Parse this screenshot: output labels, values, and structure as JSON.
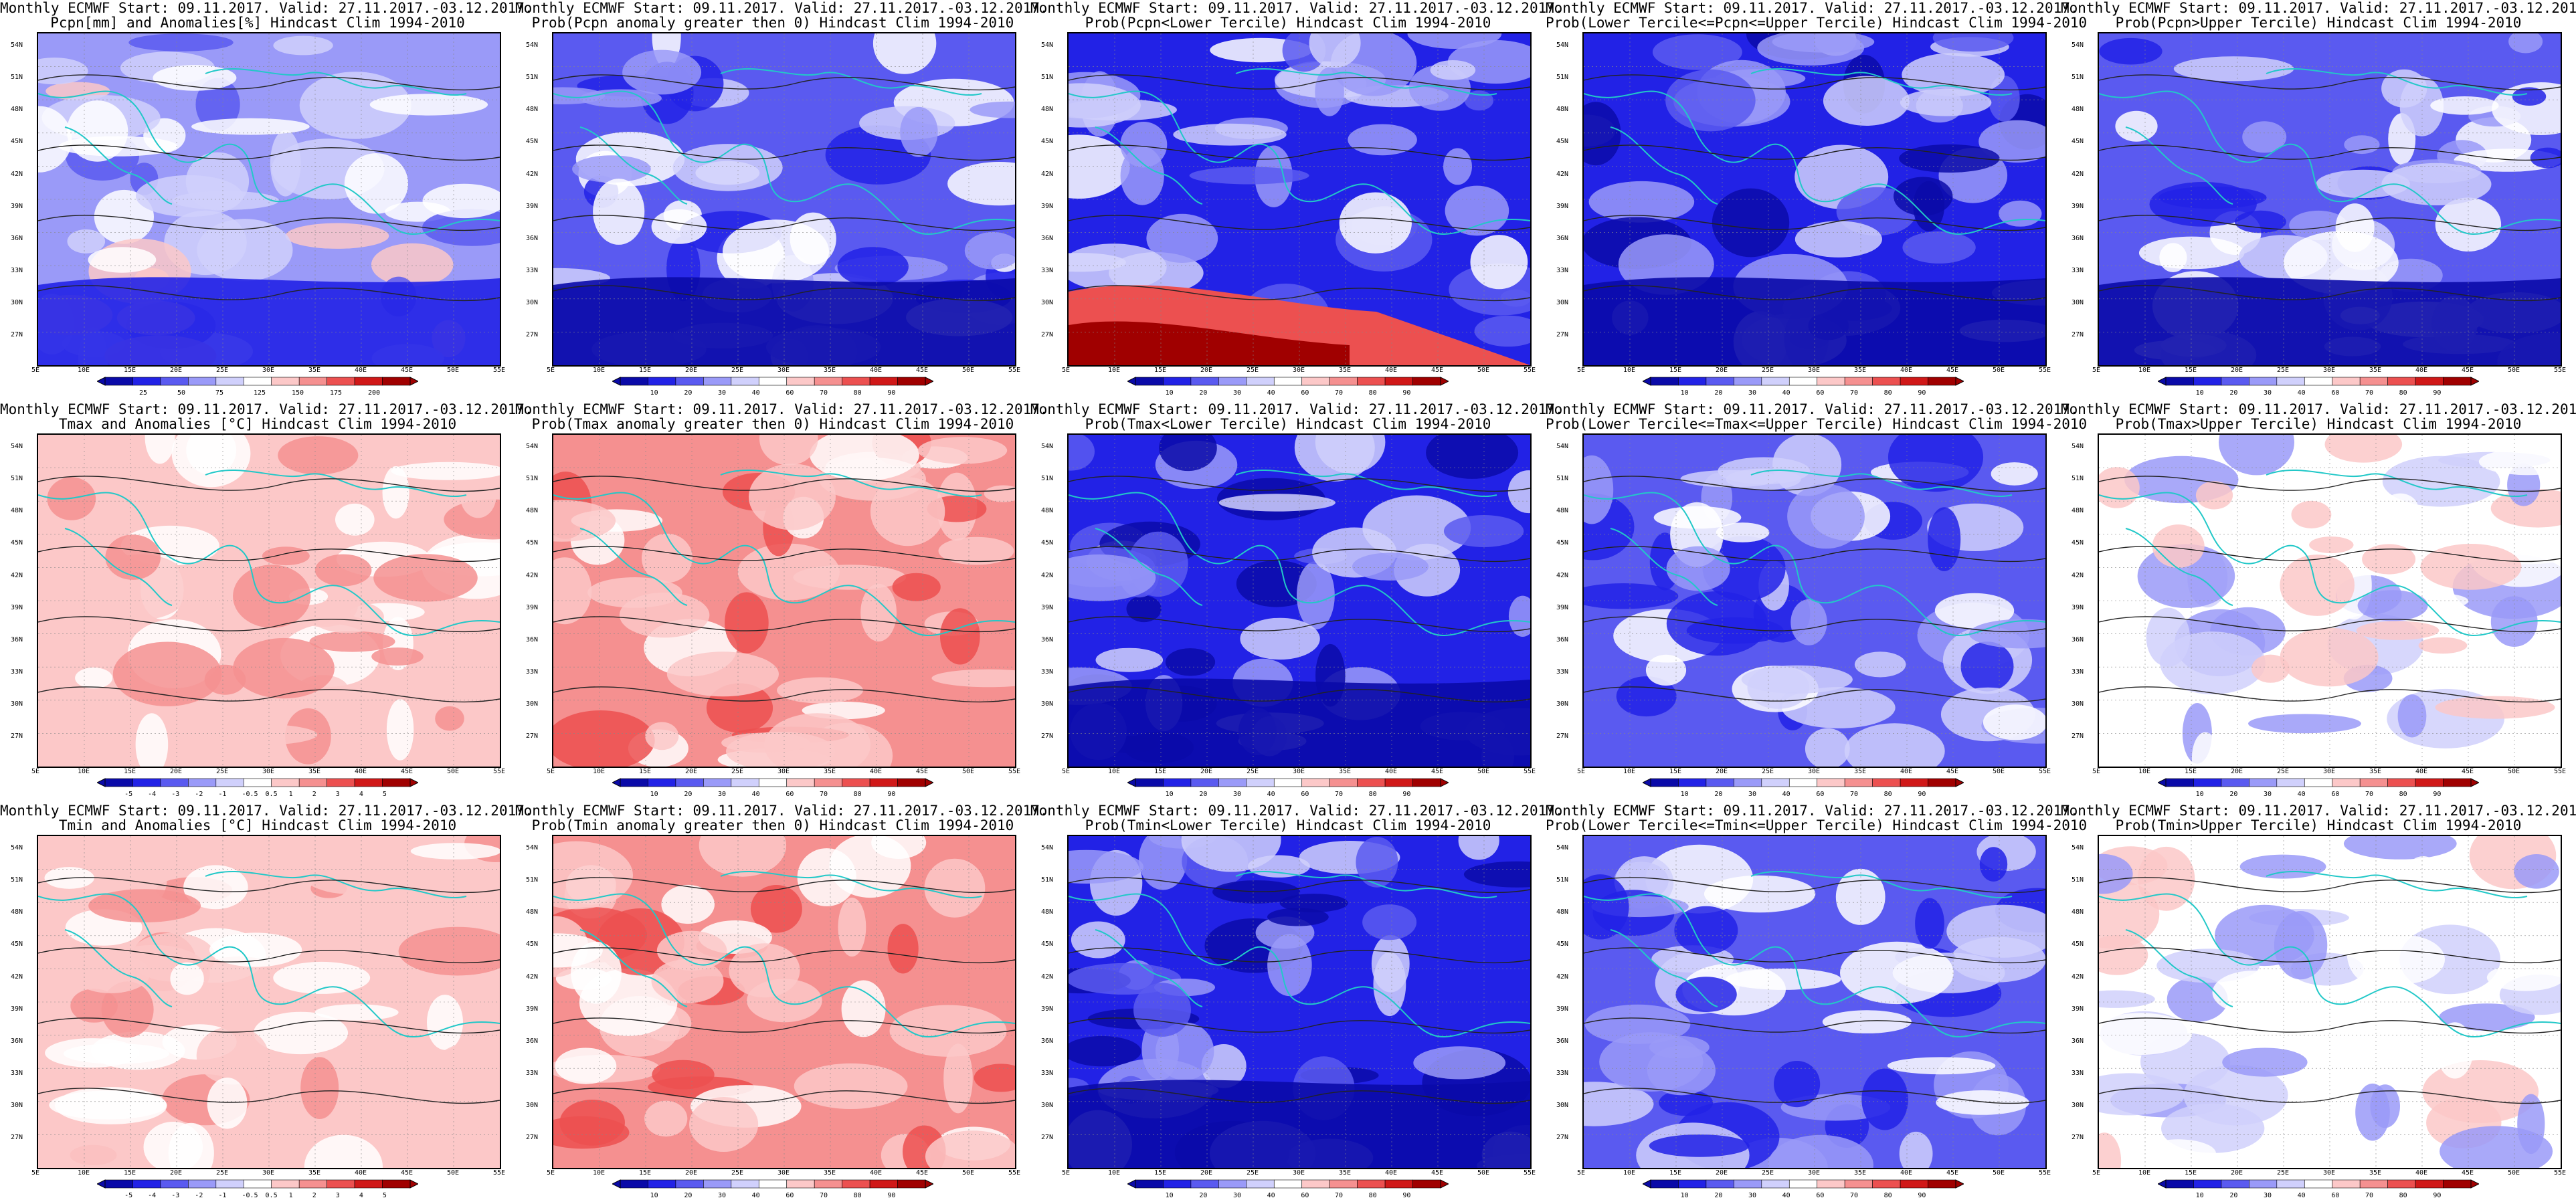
{
  "title_prefix": "Monthly ECMWF Start: 09.11.2017. Valid: 27.11.2017.-03.12.2017.",
  "lon_labels": [
    "5E",
    "10E",
    "15E",
    "20E",
    "25E",
    "30E",
    "35E",
    "40E",
    "45E",
    "50E",
    "55E"
  ],
  "lat_labels": [
    "54N",
    "51N",
    "48N",
    "45N",
    "42N",
    "39N",
    "36N",
    "33N",
    "30N",
    "27N"
  ],
  "colorbars": {
    "prob": {
      "labels": [
        "10",
        "20",
        "30",
        "40",
        "60",
        "70",
        "80",
        "90"
      ],
      "colors": [
        "#0a0aa8",
        "#2222e6",
        "#5a5af0",
        "#9a9af8",
        "#d0d0fc",
        "#ffffff",
        "#fcc8c8",
        "#f59090",
        "#ec5050",
        "#d01818",
        "#a00000"
      ]
    },
    "pcpn_anom": {
      "labels": [
        "25",
        "50",
        "75",
        "125",
        "150",
        "175",
        "200"
      ],
      "colors": [
        "#0a0aa8",
        "#2222e6",
        "#5a5af0",
        "#9a9af8",
        "#d0d0fc",
        "#ffffff",
        "#fcc8c8",
        "#f59090",
        "#ec5050",
        "#d01818",
        "#a00000"
      ]
    },
    "temp_anom": {
      "labels": [
        "-5",
        "-4",
        "-3",
        "-2",
        "-1",
        "-0.5",
        "0.5",
        "1",
        "2",
        "3",
        "4",
        "5"
      ],
      "colors": [
        "#0a0aa8",
        "#2222e6",
        "#5a5af0",
        "#9a9af8",
        "#d0d0fc",
        "#ffffff",
        "#fcc8c8",
        "#f59090",
        "#ec5050",
        "#d01818",
        "#a00000"
      ]
    }
  },
  "panels": [
    {
      "id": "pcpn-anomalies",
      "subtitle": "Pcpn[mm] and Anomalies[%] Hindcast Clim 1994-2010",
      "bar": "pcpn_anom"
    },
    {
      "id": "pcpn-prob-positive",
      "subtitle": "Prob(Pcpn anomaly greater then 0) Hindcast Clim 1994-2010",
      "bar": "prob"
    },
    {
      "id": "pcpn-prob-lower",
      "subtitle": "Prob(Pcpn<Lower Tercile) Hindcast Clim 1994-2010",
      "bar": "prob"
    },
    {
      "id": "pcpn-prob-middle",
      "subtitle": "Prob(Lower Tercile<=Pcpn<=Upper Tercile) Hindcast Clim 1994-2010",
      "bar": "prob"
    },
    {
      "id": "pcpn-prob-upper",
      "subtitle": "Prob(Pcpn>Upper Tercile) Hindcast Clim 1994-2010",
      "bar": "prob"
    },
    {
      "id": "tmax-anomalies",
      "subtitle": "Tmax and Anomalies [°C] Hindcast Clim 1994-2010",
      "bar": "temp_anom"
    },
    {
      "id": "tmax-prob-positive",
      "subtitle": "Prob(Tmax anomaly greater then 0) Hindcast Clim 1994-2010",
      "bar": "prob"
    },
    {
      "id": "tmax-prob-lower",
      "subtitle": "Prob(Tmax<Lower Tercile) Hindcast Clim 1994-2010",
      "bar": "prob"
    },
    {
      "id": "tmax-prob-middle",
      "subtitle": "Prob(Lower Tercile<=Tmax<=Upper Tercile) Hindcast Clim 1994-2010",
      "bar": "prob"
    },
    {
      "id": "tmax-prob-upper",
      "subtitle": "Prob(Tmax>Upper Tercile) Hindcast Clim 1994-2010",
      "bar": "prob"
    },
    {
      "id": "tmin-anomalies",
      "subtitle": "Tmin and Anomalies [°C] Hindcast Clim 1994-2010",
      "bar": "temp_anom"
    },
    {
      "id": "tmin-prob-positive",
      "subtitle": "Prob(Tmin anomaly greater then 0) Hindcast Clim 1994-2010",
      "bar": "prob"
    },
    {
      "id": "tmin-prob-lower",
      "subtitle": "Prob(Tmin<Lower Tercile) Hindcast Clim 1994-2010",
      "bar": "prob"
    },
    {
      "id": "tmin-prob-middle",
      "subtitle": "Prob(Lower Tercile<=Tmin<=Upper Tercile) Hindcast Clim 1994-2010",
      "bar": "prob"
    },
    {
      "id": "tmin-prob-upper",
      "subtitle": "Prob(Tmin>Upper Tercile) Hindcast Clim 1994-2010",
      "bar": "prob"
    }
  ]
}
